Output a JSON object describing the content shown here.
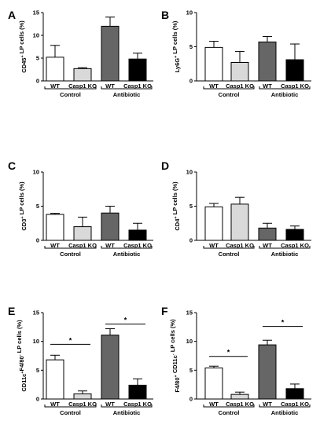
{
  "chart_data": [
    {
      "panel": "A",
      "type": "bar",
      "ylabel_main": "CD45",
      "ylabel_sup": "+",
      "ylabel_rest": " LP cells (%)",
      "ylim": [
        0,
        15
      ],
      "yticks": [
        "0",
        "5",
        "10",
        "15"
      ],
      "categories": [
        "WT",
        "Casp1 KO",
        "WT",
        "Casp1 KO"
      ],
      "groups": [
        "Control",
        "Antibiotic"
      ],
      "values": [
        5.2,
        2.7,
        12.0,
        4.8
      ],
      "errors": [
        2.6,
        0.2,
        2.0,
        1.3
      ],
      "fills": [
        "#ffffff",
        "#d9d9d9",
        "#666666",
        "#000000"
      ],
      "significance": []
    },
    {
      "panel": "B",
      "type": "bar",
      "ylabel_main": "Ly6G",
      "ylabel_sup": "+",
      "ylabel_rest": " LP cells (%)",
      "ylim": [
        0,
        10
      ],
      "yticks": [
        "0",
        "5",
        "10"
      ],
      "categories": [
        "WT",
        "Casp1 KO",
        "WT",
        "Casp1 KO"
      ],
      "groups": [
        "Control",
        "Antibiotic"
      ],
      "values": [
        4.9,
        2.7,
        5.7,
        3.1
      ],
      "errors": [
        0.9,
        1.6,
        0.8,
        2.3
      ],
      "fills": [
        "#ffffff",
        "#d9d9d9",
        "#666666",
        "#000000"
      ],
      "significance": []
    },
    {
      "panel": "C",
      "type": "bar",
      "ylabel_main": "CD3",
      "ylabel_sup": "+",
      "ylabel_rest": " LP cells (%)",
      "ylim": [
        0,
        10
      ],
      "yticks": [
        "0",
        "5",
        "10"
      ],
      "categories": [
        "WT",
        "Casp1 KO",
        "WT",
        "Casp1 KO"
      ],
      "groups": [
        "Control",
        "Antibiotic"
      ],
      "values": [
        3.8,
        2.0,
        4.0,
        1.5
      ],
      "errors": [
        0.15,
        1.4,
        1.0,
        1.0
      ],
      "fills": [
        "#ffffff",
        "#d9d9d9",
        "#666666",
        "#000000"
      ],
      "significance": []
    },
    {
      "panel": "D",
      "type": "bar",
      "ylabel_main": "CD4",
      "ylabel_sup": "+",
      "ylabel_rest": " LP cells (%)",
      "ylim": [
        0,
        10
      ],
      "yticks": [
        "0",
        "5",
        "10"
      ],
      "categories": [
        "WT",
        "Casp1 KO",
        "WT",
        "Casp1 KO"
      ],
      "groups": [
        "Control",
        "Antibiotic"
      ],
      "values": [
        4.9,
        5.3,
        1.8,
        1.6
      ],
      "errors": [
        0.5,
        1.0,
        0.7,
        0.5
      ],
      "fills": [
        "#ffffff",
        "#d9d9d9",
        "#666666",
        "#000000"
      ],
      "significance": []
    },
    {
      "panel": "E",
      "type": "bar",
      "ylabel_parts": [
        [
          "CD11c",
          "+"
        ],
        [
          "F4/80",
          "-"
        ],
        [
          " LP cells (%)",
          ""
        ]
      ],
      "ylim": [
        0,
        15
      ],
      "yticks": [
        "0",
        "5",
        "10",
        "15"
      ],
      "categories": [
        "WT",
        "Casp1 KO",
        "WT",
        "Casp1 KO"
      ],
      "groups": [
        "Control",
        "Antibiotic"
      ],
      "values": [
        6.8,
        0.9,
        11.1,
        2.4
      ],
      "errors": [
        0.8,
        0.5,
        1.1,
        1.1
      ],
      "fills": [
        "#ffffff",
        "#d9d9d9",
        "#666666",
        "#000000"
      ],
      "significance": [
        {
          "from": 0,
          "to": 1,
          "label": "*",
          "y": 9.5
        },
        {
          "from": 2,
          "to": 3,
          "label": "*",
          "y": 13.0
        }
      ]
    },
    {
      "panel": "F",
      "type": "bar",
      "ylabel_parts": [
        [
          "F4/80",
          "+"
        ],
        [
          " CD11c",
          "-"
        ],
        [
          " LP cells (%)",
          ""
        ]
      ],
      "ylim": [
        0,
        15
      ],
      "yticks": [
        "0",
        "5",
        "10",
        "15"
      ],
      "categories": [
        "WT",
        "Casp1 KO",
        "WT",
        "Casp1 KO"
      ],
      "groups": [
        "Control",
        "Antibiotic"
      ],
      "values": [
        5.4,
        0.8,
        9.4,
        1.8
      ],
      "errors": [
        0.3,
        0.4,
        0.8,
        0.8
      ],
      "fills": [
        "#ffffff",
        "#d9d9d9",
        "#666666",
        "#000000"
      ],
      "significance": [
        {
          "from": 0,
          "to": 1,
          "label": "*",
          "y": 7.4
        },
        {
          "from": 2,
          "to": 3,
          "label": "*",
          "y": 12.6
        }
      ]
    }
  ]
}
